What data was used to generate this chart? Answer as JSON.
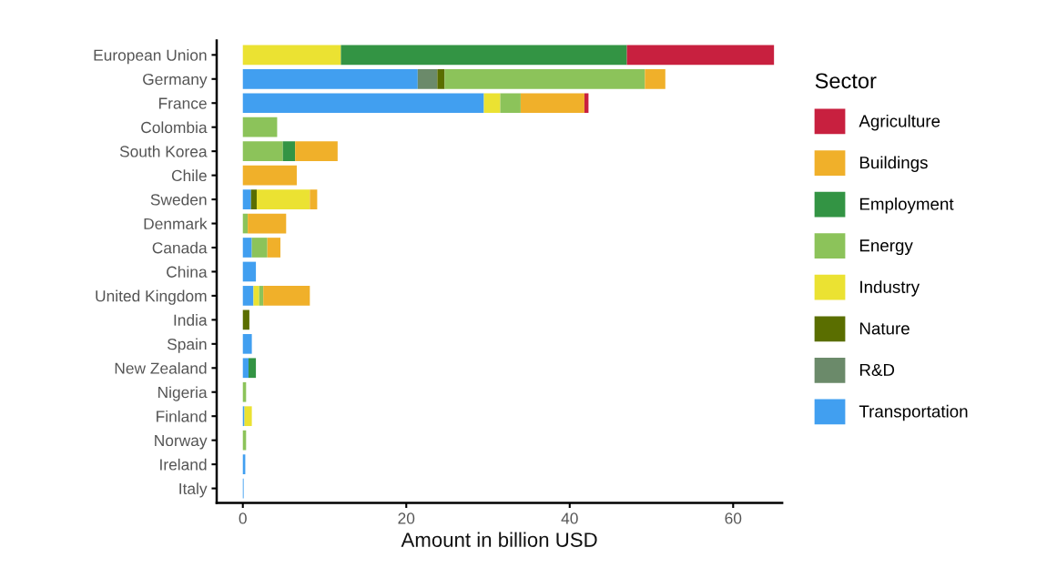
{
  "chart_data": {
    "type": "bar",
    "orientation": "horizontal",
    "stacked": true,
    "xlabel": "Amount in billion USD",
    "legend_title": "Sector",
    "legend": "right",
    "grid": false,
    "categories": [
      "European Union",
      "Germany",
      "France",
      "Colombia",
      "South Korea",
      "Chile",
      "Sweden",
      "Denmark",
      "Canada",
      "China",
      "United Kingdom",
      "India",
      "Spain",
      "New Zealand",
      "Nigeria",
      "Finland",
      "Norway",
      "Ireland",
      "Italy"
    ],
    "xlim": [
      -3.2,
      66
    ],
    "xticks": [
      0,
      20,
      40,
      60
    ],
    "series": [
      {
        "name": "Transportation",
        "color": "#419ff0",
        "values": [
          null,
          21.4,
          29.5,
          null,
          null,
          null,
          1.0,
          null,
          1.1,
          1.6,
          1.3,
          null,
          1.1,
          0.7,
          null,
          0.2,
          null,
          0.3,
          0.1
        ]
      },
      {
        "name": "R&D",
        "color": "#6b8a6a",
        "values": [
          null,
          2.4,
          null,
          null,
          null,
          null,
          null,
          null,
          null,
          null,
          null,
          null,
          null,
          null,
          null,
          null,
          null,
          null,
          null
        ]
      },
      {
        "name": "Nature",
        "color": "#5a6e00",
        "values": [
          null,
          0.9,
          null,
          null,
          null,
          null,
          0.7,
          null,
          null,
          null,
          null,
          0.8,
          null,
          null,
          null,
          null,
          null,
          null,
          null
        ]
      },
      {
        "name": "Industry",
        "color": "#ebe232",
        "values": [
          12.0,
          null,
          2.0,
          null,
          null,
          null,
          6.5,
          null,
          null,
          null,
          0.7,
          null,
          null,
          null,
          null,
          0.9,
          null,
          null,
          null
        ]
      },
      {
        "name": "Energy",
        "color": "#8cc35a",
        "values": [
          null,
          24.5,
          2.5,
          4.2,
          4.9,
          null,
          null,
          0.6,
          1.9,
          null,
          0.5,
          null,
          null,
          null,
          0.4,
          null,
          0.4,
          null,
          null
        ]
      },
      {
        "name": "Employment",
        "color": "#339444",
        "values": [
          35.0,
          null,
          null,
          null,
          1.5,
          null,
          null,
          null,
          null,
          null,
          null,
          null,
          null,
          0.9,
          null,
          null,
          null,
          null,
          null
        ]
      },
      {
        "name": "Buildings",
        "color": "#f0b02a",
        "values": [
          null,
          2.5,
          7.8,
          null,
          5.2,
          6.6,
          0.9,
          4.7,
          1.6,
          null,
          5.7,
          null,
          null,
          null,
          null,
          null,
          null,
          null,
          null
        ]
      },
      {
        "name": "Agriculture",
        "color": "#c8203f",
        "values": [
          18.0,
          null,
          0.5,
          null,
          null,
          null,
          null,
          null,
          null,
          null,
          null,
          null,
          null,
          null,
          null,
          null,
          null,
          null,
          null
        ]
      }
    ]
  }
}
